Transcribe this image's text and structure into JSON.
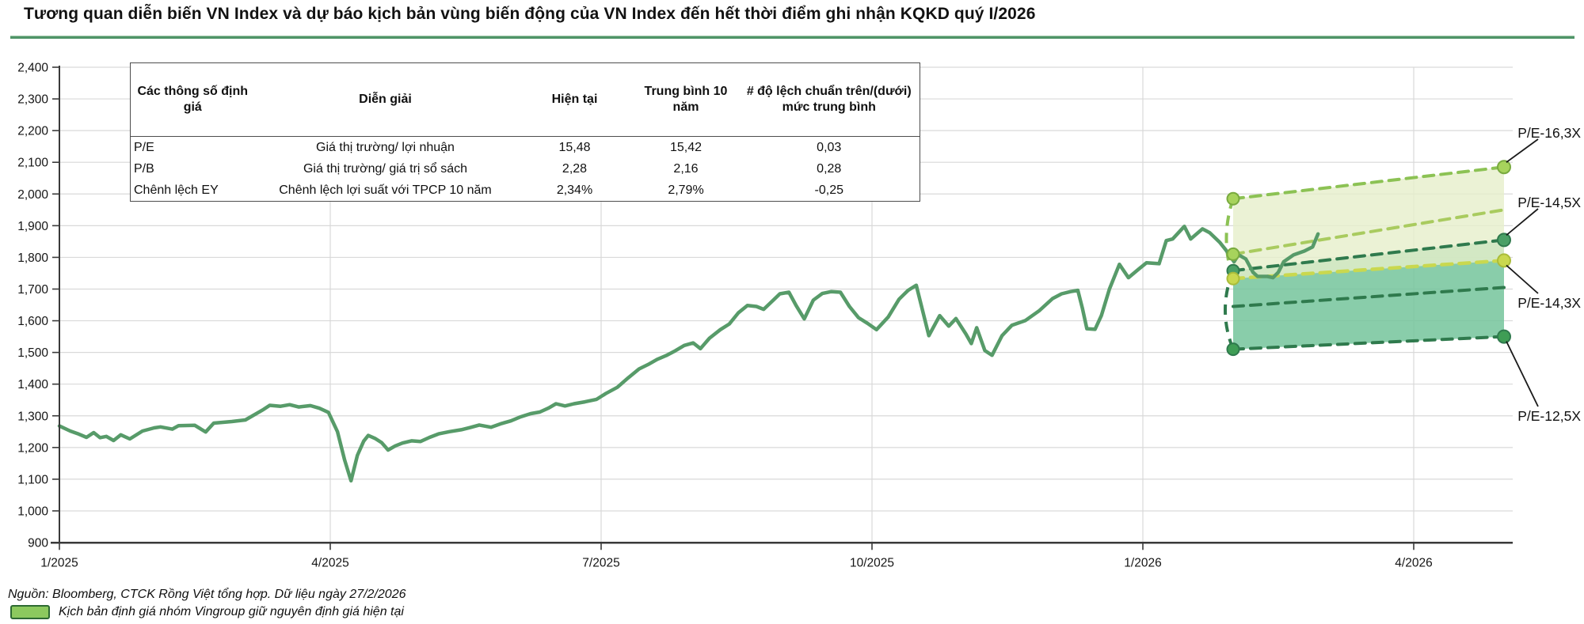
{
  "title": "Tương quan diễn biến VN Index và dự báo kịch bản vùng biến động của VN Index đến hết thời điểm ghi nhận KQKD quý I/2026",
  "accent_rule_color": "#4f9468",
  "valuation_table": {
    "headers": [
      "Các thông số định giá",
      "Diễn giải",
      "Hiện tại",
      "Trung bình 10 năm",
      "# độ lệch chuẩn trên/(dưới) mức trung bình"
    ],
    "rows": [
      [
        "P/E",
        "Giá thị trường/ lợi nhuận",
        "15,48",
        "15,42",
        "0,03"
      ],
      [
        "P/B",
        "Giá thị trường/ giá trị sổ sách",
        "2,28",
        "2,16",
        "0,28"
      ],
      [
        "Chênh lệch EY",
        "Chênh lệch lợi suất với TPCP 10 năm",
        "2,34%",
        "2,79%",
        "-0,25"
      ]
    ]
  },
  "footer": {
    "source": "Nguồn: Bloomberg, CTCK Rồng Việt tổng hợp. Dữ liệu ngày 27/2/2026",
    "legend_label": "Kịch bản định giá nhóm Vingroup giữ nguyên định giá hiện tại",
    "legend_swatch_fill": "#8cc95e",
    "legend_swatch_border": "#2d6a32"
  },
  "chart_data": {
    "type": "line",
    "title": "",
    "xlabel": "",
    "ylabel": "",
    "grid": true,
    "x_axis": {
      "tick_labels": [
        "1/2025",
        "4/2025",
        "7/2025",
        "10/2025",
        "1/2026",
        "4/2026"
      ],
      "tick_months": [
        0,
        3,
        6,
        9,
        12,
        15
      ]
    },
    "y_axis": {
      "min": 900,
      "max": 2400,
      "step": 100,
      "tick_labels": [
        "900",
        "1,000",
        "1,100",
        "1,200",
        "1,300",
        "1,400",
        "1,500",
        "1,600",
        "1,700",
        "1,800",
        "1,900",
        "2,000",
        "2,100",
        "2,200",
        "2,300",
        "2,400"
      ]
    },
    "colors": {
      "line": "#579b69",
      "grid": "#d9d9d9",
      "spine": "#3a3a3a",
      "band_light_fill": "#e6efcb",
      "band_teal_fill": "#74c49b",
      "dash_light": "#8cc254",
      "dash_mid_light": "#a9cb5f",
      "dash_dark": "#2f7a4d",
      "dash_yellow": "#c9d84f",
      "dot_light": "#a7d35c",
      "dot_green": "#4aa066",
      "dot_dark_green": "#3f9d55",
      "callout_text": "#111111"
    },
    "series": [
      {
        "name": "VN Index",
        "points_month_value": [
          [
            0,
            1268
          ],
          [
            0.12,
            1252
          ],
          [
            0.2,
            1244
          ],
          [
            0.3,
            1232
          ],
          [
            0.38,
            1247
          ],
          [
            0.45,
            1231
          ],
          [
            0.52,
            1235
          ],
          [
            0.6,
            1222
          ],
          [
            0.68,
            1240
          ],
          [
            0.78,
            1227
          ],
          [
            0.92,
            1252
          ],
          [
            1.05,
            1262
          ],
          [
            1.12,
            1265
          ],
          [
            1.25,
            1258
          ],
          [
            1.32,
            1269
          ],
          [
            1.5,
            1270
          ],
          [
            1.62,
            1249
          ],
          [
            1.71,
            1277
          ],
          [
            1.91,
            1282
          ],
          [
            2.06,
            1287
          ],
          [
            2.26,
            1320
          ],
          [
            2.33,
            1333
          ],
          [
            2.45,
            1330
          ],
          [
            2.55,
            1335
          ],
          [
            2.65,
            1328
          ],
          [
            2.78,
            1332
          ],
          [
            2.88,
            1324
          ],
          [
            2.98,
            1311
          ],
          [
            3.08,
            1250
          ],
          [
            3.16,
            1160
          ],
          [
            3.23,
            1095
          ],
          [
            3.3,
            1175
          ],
          [
            3.37,
            1220
          ],
          [
            3.42,
            1238
          ],
          [
            3.5,
            1228
          ],
          [
            3.57,
            1215
          ],
          [
            3.64,
            1192
          ],
          [
            3.72,
            1205
          ],
          [
            3.8,
            1214
          ],
          [
            3.9,
            1221
          ],
          [
            4.0,
            1219
          ],
          [
            4.1,
            1232
          ],
          [
            4.2,
            1243
          ],
          [
            4.32,
            1250
          ],
          [
            4.45,
            1256
          ],
          [
            4.55,
            1263
          ],
          [
            4.65,
            1271
          ],
          [
            4.78,
            1264
          ],
          [
            4.9,
            1276
          ],
          [
            5.0,
            1284
          ],
          [
            5.1,
            1296
          ],
          [
            5.22,
            1307
          ],
          [
            5.32,
            1312
          ],
          [
            5.42,
            1325
          ],
          [
            5.5,
            1338
          ],
          [
            5.6,
            1331
          ],
          [
            5.7,
            1338
          ],
          [
            5.82,
            1344
          ],
          [
            5.95,
            1352
          ],
          [
            6.05,
            1370
          ],
          [
            6.18,
            1390
          ],
          [
            6.3,
            1420
          ],
          [
            6.42,
            1448
          ],
          [
            6.52,
            1462
          ],
          [
            6.62,
            1478
          ],
          [
            6.72,
            1490
          ],
          [
            6.82,
            1505
          ],
          [
            6.92,
            1522
          ],
          [
            7.02,
            1530
          ],
          [
            7.1,
            1512
          ],
          [
            7.2,
            1545
          ],
          [
            7.32,
            1572
          ],
          [
            7.42,
            1590
          ],
          [
            7.52,
            1625
          ],
          [
            7.62,
            1648
          ],
          [
            7.72,
            1645
          ],
          [
            7.8,
            1636
          ],
          [
            7.9,
            1663
          ],
          [
            7.98,
            1685
          ],
          [
            8.08,
            1690
          ],
          [
            8.16,
            1648
          ],
          [
            8.25,
            1606
          ],
          [
            8.35,
            1665
          ],
          [
            8.45,
            1686
          ],
          [
            8.55,
            1692
          ],
          [
            8.65,
            1690
          ],
          [
            8.75,
            1645
          ],
          [
            8.85,
            1610
          ],
          [
            8.95,
            1592
          ],
          [
            9.05,
            1572
          ],
          [
            9.18,
            1612
          ],
          [
            9.3,
            1668
          ],
          [
            9.4,
            1696
          ],
          [
            9.49,
            1712
          ],
          [
            9.63,
            1553
          ],
          [
            9.75,
            1616
          ],
          [
            9.85,
            1583
          ],
          [
            9.93,
            1607
          ],
          [
            10.04,
            1558
          ],
          [
            10.1,
            1528
          ],
          [
            10.16,
            1578
          ],
          [
            10.25,
            1506
          ],
          [
            10.33,
            1491
          ],
          [
            10.44,
            1553
          ],
          [
            10.55,
            1586
          ],
          [
            10.7,
            1601
          ],
          [
            10.85,
            1631
          ],
          [
            11.0,
            1670
          ],
          [
            11.1,
            1685
          ],
          [
            11.2,
            1692
          ],
          [
            11.28,
            1696
          ],
          [
            11.33,
            1640
          ],
          [
            11.38,
            1575
          ],
          [
            11.47,
            1573
          ],
          [
            11.54,
            1616
          ],
          [
            11.63,
            1700
          ],
          [
            11.74,
            1778
          ],
          [
            11.84,
            1736
          ],
          [
            11.95,
            1762
          ],
          [
            12.04,
            1783
          ],
          [
            12.18,
            1780
          ],
          [
            12.26,
            1853
          ],
          [
            12.33,
            1858
          ],
          [
            12.46,
            1898
          ],
          [
            12.53,
            1858
          ],
          [
            12.66,
            1890
          ],
          [
            12.74,
            1878
          ],
          [
            12.85,
            1848
          ],
          [
            12.92,
            1823
          ],
          [
            13.01,
            1786
          ],
          [
            13.06,
            1808
          ],
          [
            13.14,
            1795
          ],
          [
            13.22,
            1753
          ],
          [
            13.27,
            1740
          ],
          [
            13.38,
            1740
          ],
          [
            13.44,
            1736
          ],
          [
            13.5,
            1753
          ],
          [
            13.56,
            1786
          ],
          [
            13.67,
            1808
          ],
          [
            13.79,
            1820
          ],
          [
            13.88,
            1833
          ],
          [
            13.94,
            1874
          ]
        ]
      }
    ],
    "forecast_fan": {
      "start_month": 13.0,
      "end_month": 16.0,
      "bands": [
        {
          "name": "upper-scenario-band",
          "top_start": 1985,
          "top_end": 2085,
          "bottom_start": 1733,
          "bottom_end": 1790,
          "fill": "#e6efcb",
          "opacity": 0.8
        },
        {
          "name": "lower-scenario-band",
          "top_start": 1758,
          "top_end": 1855,
          "bottom_start": 1510,
          "bottom_end": 1550,
          "fill": "#74c49b",
          "opacity": 0.85
        }
      ],
      "boundary_lines": [
        {
          "label": "P/E-16,3X",
          "start_value": 1985,
          "end_value": 2085,
          "style": "light",
          "dot_start": true,
          "dot_end": true
        },
        {
          "label": "",
          "start_value": 1810,
          "end_value": 1950,
          "style": "mid_light",
          "dot_start": true,
          "dot_end": false
        },
        {
          "label": "P/E-14,5X",
          "start_value": 1758,
          "end_value": 1855,
          "style": "dark",
          "dot_start": true,
          "dot_end": true
        },
        {
          "label": "P/E-14,3X",
          "start_value": 1733,
          "end_value": 1790,
          "style": "yellow",
          "dot_start": true,
          "dot_end": true
        },
        {
          "label": "",
          "start_value": 1645,
          "end_value": 1705,
          "style": "dark",
          "dot_start": false,
          "dot_end": false
        },
        {
          "label": "P/E-12,5X",
          "start_value": 1510,
          "end_value": 1550,
          "style": "dark",
          "dot_start": true,
          "dot_end": true
        }
      ]
    },
    "annotations": [
      "P/E-16,3X",
      "P/E-14,5X",
      "P/E-14,3X",
      "P/E-12,5X"
    ],
    "legend_position": "bottom-left"
  }
}
